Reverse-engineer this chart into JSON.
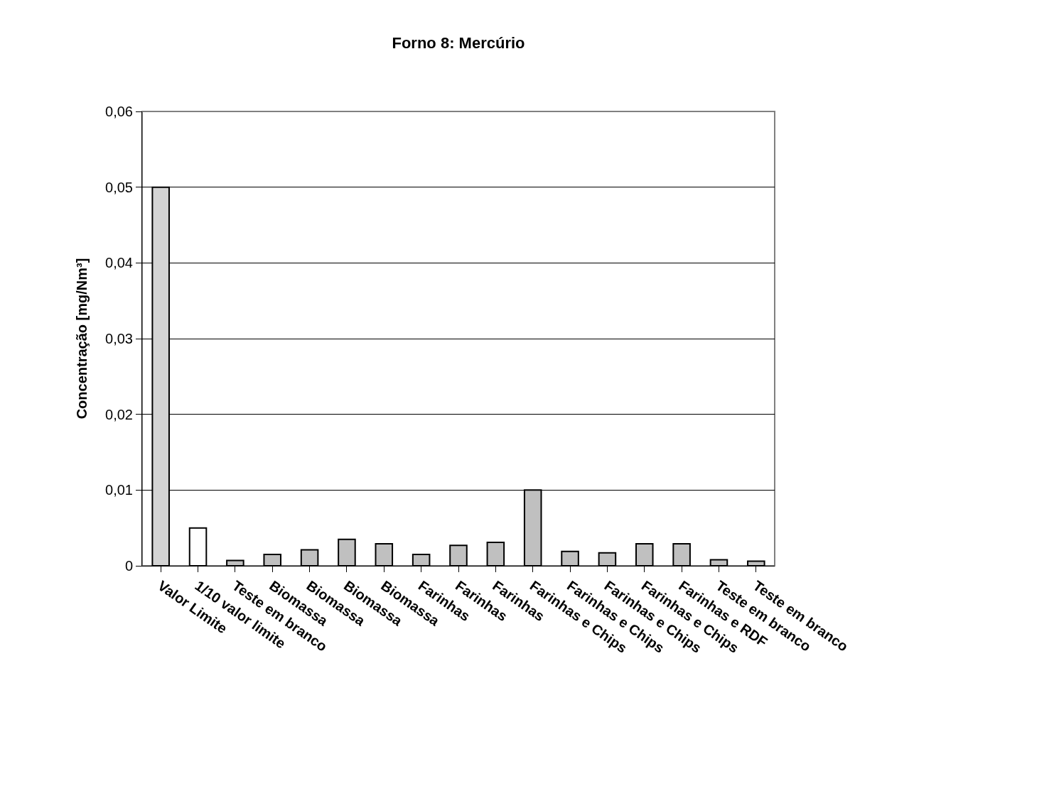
{
  "chart_data": {
    "type": "bar",
    "title": "Forno 8: Mercúrio",
    "ylabel": "Concentração [mg/Nm³]",
    "categories": [
      "Valor Limite",
      "1/10 valor limite",
      "Teste em branco",
      "Biomassa",
      "Biomassa",
      "Biomassa",
      "Biomassa",
      "Farinhas",
      "Farinhas",
      "Farinhas",
      "Farinhas e Chips",
      "Farinhas e Chips",
      "Farinhas e Chips",
      "Farinhas e Chips",
      "Farinhas e RDF",
      "Teste em branco",
      "Teste em branco"
    ],
    "values": [
      0.05,
      0.005,
      0.0007,
      0.0015,
      0.0021,
      0.0035,
      0.0029,
      0.0015,
      0.0027,
      0.0031,
      0.01,
      0.0019,
      0.0017,
      0.0029,
      0.0029,
      0.0008,
      0.0006
    ],
    "colors": [
      "#d4d4d4",
      "#ffffff",
      "#c0c0c0",
      "#c0c0c0",
      "#c0c0c0",
      "#c0c0c0",
      "#c0c0c0",
      "#c0c0c0",
      "#c0c0c0",
      "#c0c0c0",
      "#c0c0c0",
      "#c0c0c0",
      "#c0c0c0",
      "#c0c0c0",
      "#c0c0c0",
      "#c0c0c0",
      "#c0c0c0"
    ],
    "ylim": [
      0,
      0.06
    ],
    "yticks": [
      {
        "value": 0,
        "label": "0"
      },
      {
        "value": 0.01,
        "label": "0,01"
      },
      {
        "value": 0.02,
        "label": "0,02"
      },
      {
        "value": 0.03,
        "label": "0,03"
      },
      {
        "value": 0.04,
        "label": "0,04"
      },
      {
        "value": 0.05,
        "label": "0,05"
      },
      {
        "value": 0.06,
        "label": "0,06"
      }
    ],
    "grid": "y"
  }
}
